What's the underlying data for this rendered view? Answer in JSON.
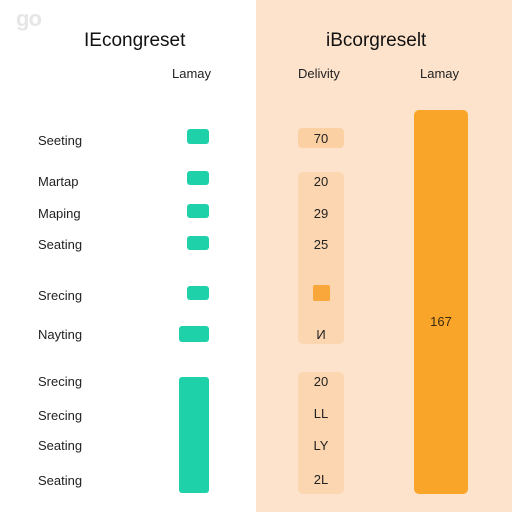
{
  "watermark": "go",
  "left": {
    "title": "IEcongreset",
    "column_header": "Lamay",
    "rows": [
      {
        "label": "Seeting"
      },
      {
        "label": "Martap"
      },
      {
        "label": "Maping"
      },
      {
        "label": "Seating"
      },
      {
        "label": "Srecing"
      },
      {
        "label": "Nayting"
      },
      {
        "label": "Srecing"
      },
      {
        "label": "Srecing"
      },
      {
        "label": "Seating"
      },
      {
        "label": "Seating"
      }
    ]
  },
  "right": {
    "title": "iBcorgreselt",
    "column_header_delivery": "Delivity",
    "column_header_lamay": "Lamay",
    "values": [
      "70",
      "20",
      "29",
      "25",
      "",
      "И",
      "20",
      "LL",
      "LY",
      "2L"
    ],
    "big_bar_value": "167"
  },
  "colors": {
    "teal": "#1fd1a8",
    "orange": "#f9a52a",
    "peach_background": "#fde3cc",
    "value_fill": "#fbd0a3"
  }
}
